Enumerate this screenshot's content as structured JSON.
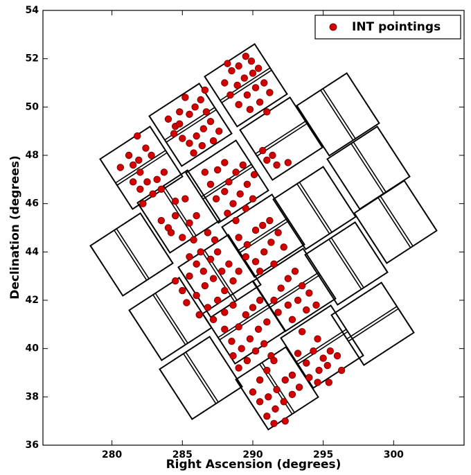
{
  "chart_data": {
    "type": "scatter",
    "x_label": "Right Ascension (degrees)",
    "y_label": "Declination (degrees)",
    "xlim": [
      275.1,
      305
    ],
    "ylim": [
      36,
      54
    ],
    "xticks": [
      280,
      285,
      290,
      295,
      300
    ],
    "yticks": [
      36,
      38,
      40,
      42,
      44,
      46,
      48,
      50,
      52,
      54
    ],
    "legend": "upper right",
    "series": [
      {
        "name": "INT pointings",
        "color": "#d40000",
        "x": [
          280.6,
          281.2,
          281.5,
          281.8,
          282.0,
          282.4,
          282.8,
          281.5,
          282.0,
          282.5,
          282.9,
          283.2,
          283.5,
          282.2,
          281.9,
          283.7,
          284.0,
          284.5,
          284.8,
          285.2,
          285.5,
          285.9,
          286.3,
          286.7,
          284.4,
          285.0,
          285.5,
          286.0,
          286.5,
          287.0,
          285.8,
          286.4,
          287.2,
          287.6,
          284.8,
          286.6,
          288.0,
          288.5,
          289.0,
          289.5,
          289.9,
          288.4,
          288.9,
          289.4,
          290.0,
          290.4,
          289.0,
          289.6,
          290.2,
          290.8,
          291.2,
          289.8,
          290.5,
          291.0,
          288.2,
          290.7,
          291.0,
          291.7,
          292.5,
          291.4,
          286.6,
          287.0,
          287.5,
          288.0,
          288.3,
          288.8,
          289.3,
          287.4,
          288.0,
          288.6,
          289.1,
          289.6,
          290.1,
          288.2,
          288.8,
          289.5,
          290.0,
          283.5,
          284.0,
          284.5,
          284.5,
          285.2,
          285.5,
          286.0,
          285.0,
          285.8,
          286.3,
          286.8,
          284.2,
          285.5,
          287.3,
          284.5,
          285.0,
          285.5,
          286.0,
          286.5,
          287.0,
          287.5,
          285.3,
          286.0,
          286.6,
          287.2,
          287.8,
          288.3,
          286.2,
          286.8,
          287.5,
          288.0,
          288.6,
          289.0,
          287.2,
          288.0,
          288.6,
          289.0,
          289.6,
          290.2,
          290.7,
          291.2,
          289.5,
          290.2,
          290.8,
          291.3,
          291.8,
          292.2,
          290.5,
          291.5,
          291.5,
          292.0,
          292.5,
          293.0,
          293.5,
          291.8,
          292.5,
          293.2,
          293.8,
          294.5,
          292.8,
          294.0,
          293.5,
          288.0,
          288.5,
          289.0,
          289.5,
          290.0,
          290.5,
          288.6,
          289.2,
          289.8,
          290.4,
          291.0,
          289.0,
          289.6,
          290.2,
          290.8,
          291.3,
          290.0,
          290.5,
          291.0,
          291.5,
          290.5,
          291.1,
          291.7,
          292.3,
          292.8,
          291.0,
          291.6,
          292.2,
          292.8,
          293.3,
          291.5,
          292.3,
          293.2,
          293.8,
          294.3,
          294.6,
          295.0,
          295.5,
          296.0,
          294.0,
          294.7,
          295.3,
          294.6,
          295.4,
          296.3
        ],
        "y": [
          47.5,
          48.0,
          47.6,
          48.8,
          47.3,
          48.3,
          48.0,
          46.9,
          46.6,
          46.9,
          46.4,
          47.0,
          46.6,
          46.0,
          47.8,
          47.3,
          49.5,
          49.2,
          49.8,
          50.4,
          49.7,
          50.0,
          50.3,
          49.8,
          48.9,
          48.7,
          48.5,
          48.8,
          49.1,
          49.4,
          48.1,
          48.4,
          48.6,
          49.0,
          49.3,
          50.7,
          51.0,
          51.5,
          51.7,
          52.1,
          51.9,
          50.5,
          50.9,
          51.2,
          51.4,
          51.6,
          50.1,
          50.5,
          50.8,
          51.0,
          50.6,
          49.9,
          50.2,
          49.8,
          51.8,
          48.2,
          47.8,
          47.6,
          47.7,
          48.0,
          47.3,
          46.8,
          47.4,
          47.7,
          46.9,
          47.3,
          47.6,
          46.2,
          46.5,
          46.0,
          46.4,
          46.8,
          47.2,
          45.6,
          45.3,
          45.8,
          46.2,
          45.3,
          45.0,
          45.5,
          46.1,
          46.2,
          45.2,
          45.5,
          44.6,
          44.5,
          44.0,
          44.8,
          44.8,
          43.8,
          44.5,
          42.8,
          42.4,
          43.0,
          43.5,
          43.2,
          43.7,
          44.0,
          41.9,
          42.2,
          42.6,
          42.9,
          43.2,
          43.5,
          41.4,
          41.7,
          42.0,
          42.4,
          42.8,
          43.2,
          41.2,
          41.5,
          41.8,
          44.6,
          44.3,
          44.9,
          45.1,
          45.3,
          43.8,
          43.6,
          44.0,
          44.4,
          44.8,
          44.2,
          43.2,
          43.5,
          42.0,
          42.5,
          42.9,
          43.2,
          42.6,
          41.5,
          41.8,
          42.0,
          41.6,
          41.8,
          41.2,
          42.3,
          40.7,
          40.8,
          40.3,
          40.9,
          41.4,
          41.7,
          42.0,
          39.7,
          40.0,
          40.4,
          40.8,
          41.1,
          39.2,
          39.5,
          39.9,
          40.2,
          39.7,
          38.2,
          38.7,
          39.1,
          39.5,
          37.8,
          38.0,
          38.3,
          38.7,
          38.9,
          37.2,
          37.5,
          37.8,
          38.1,
          38.4,
          36.9,
          37.0,
          39.8,
          39.4,
          39.9,
          40.4,
          39.6,
          39.9,
          39.7,
          38.8,
          39.1,
          39.3,
          38.6,
          38.6,
          39.1
        ]
      }
    ]
  }
}
